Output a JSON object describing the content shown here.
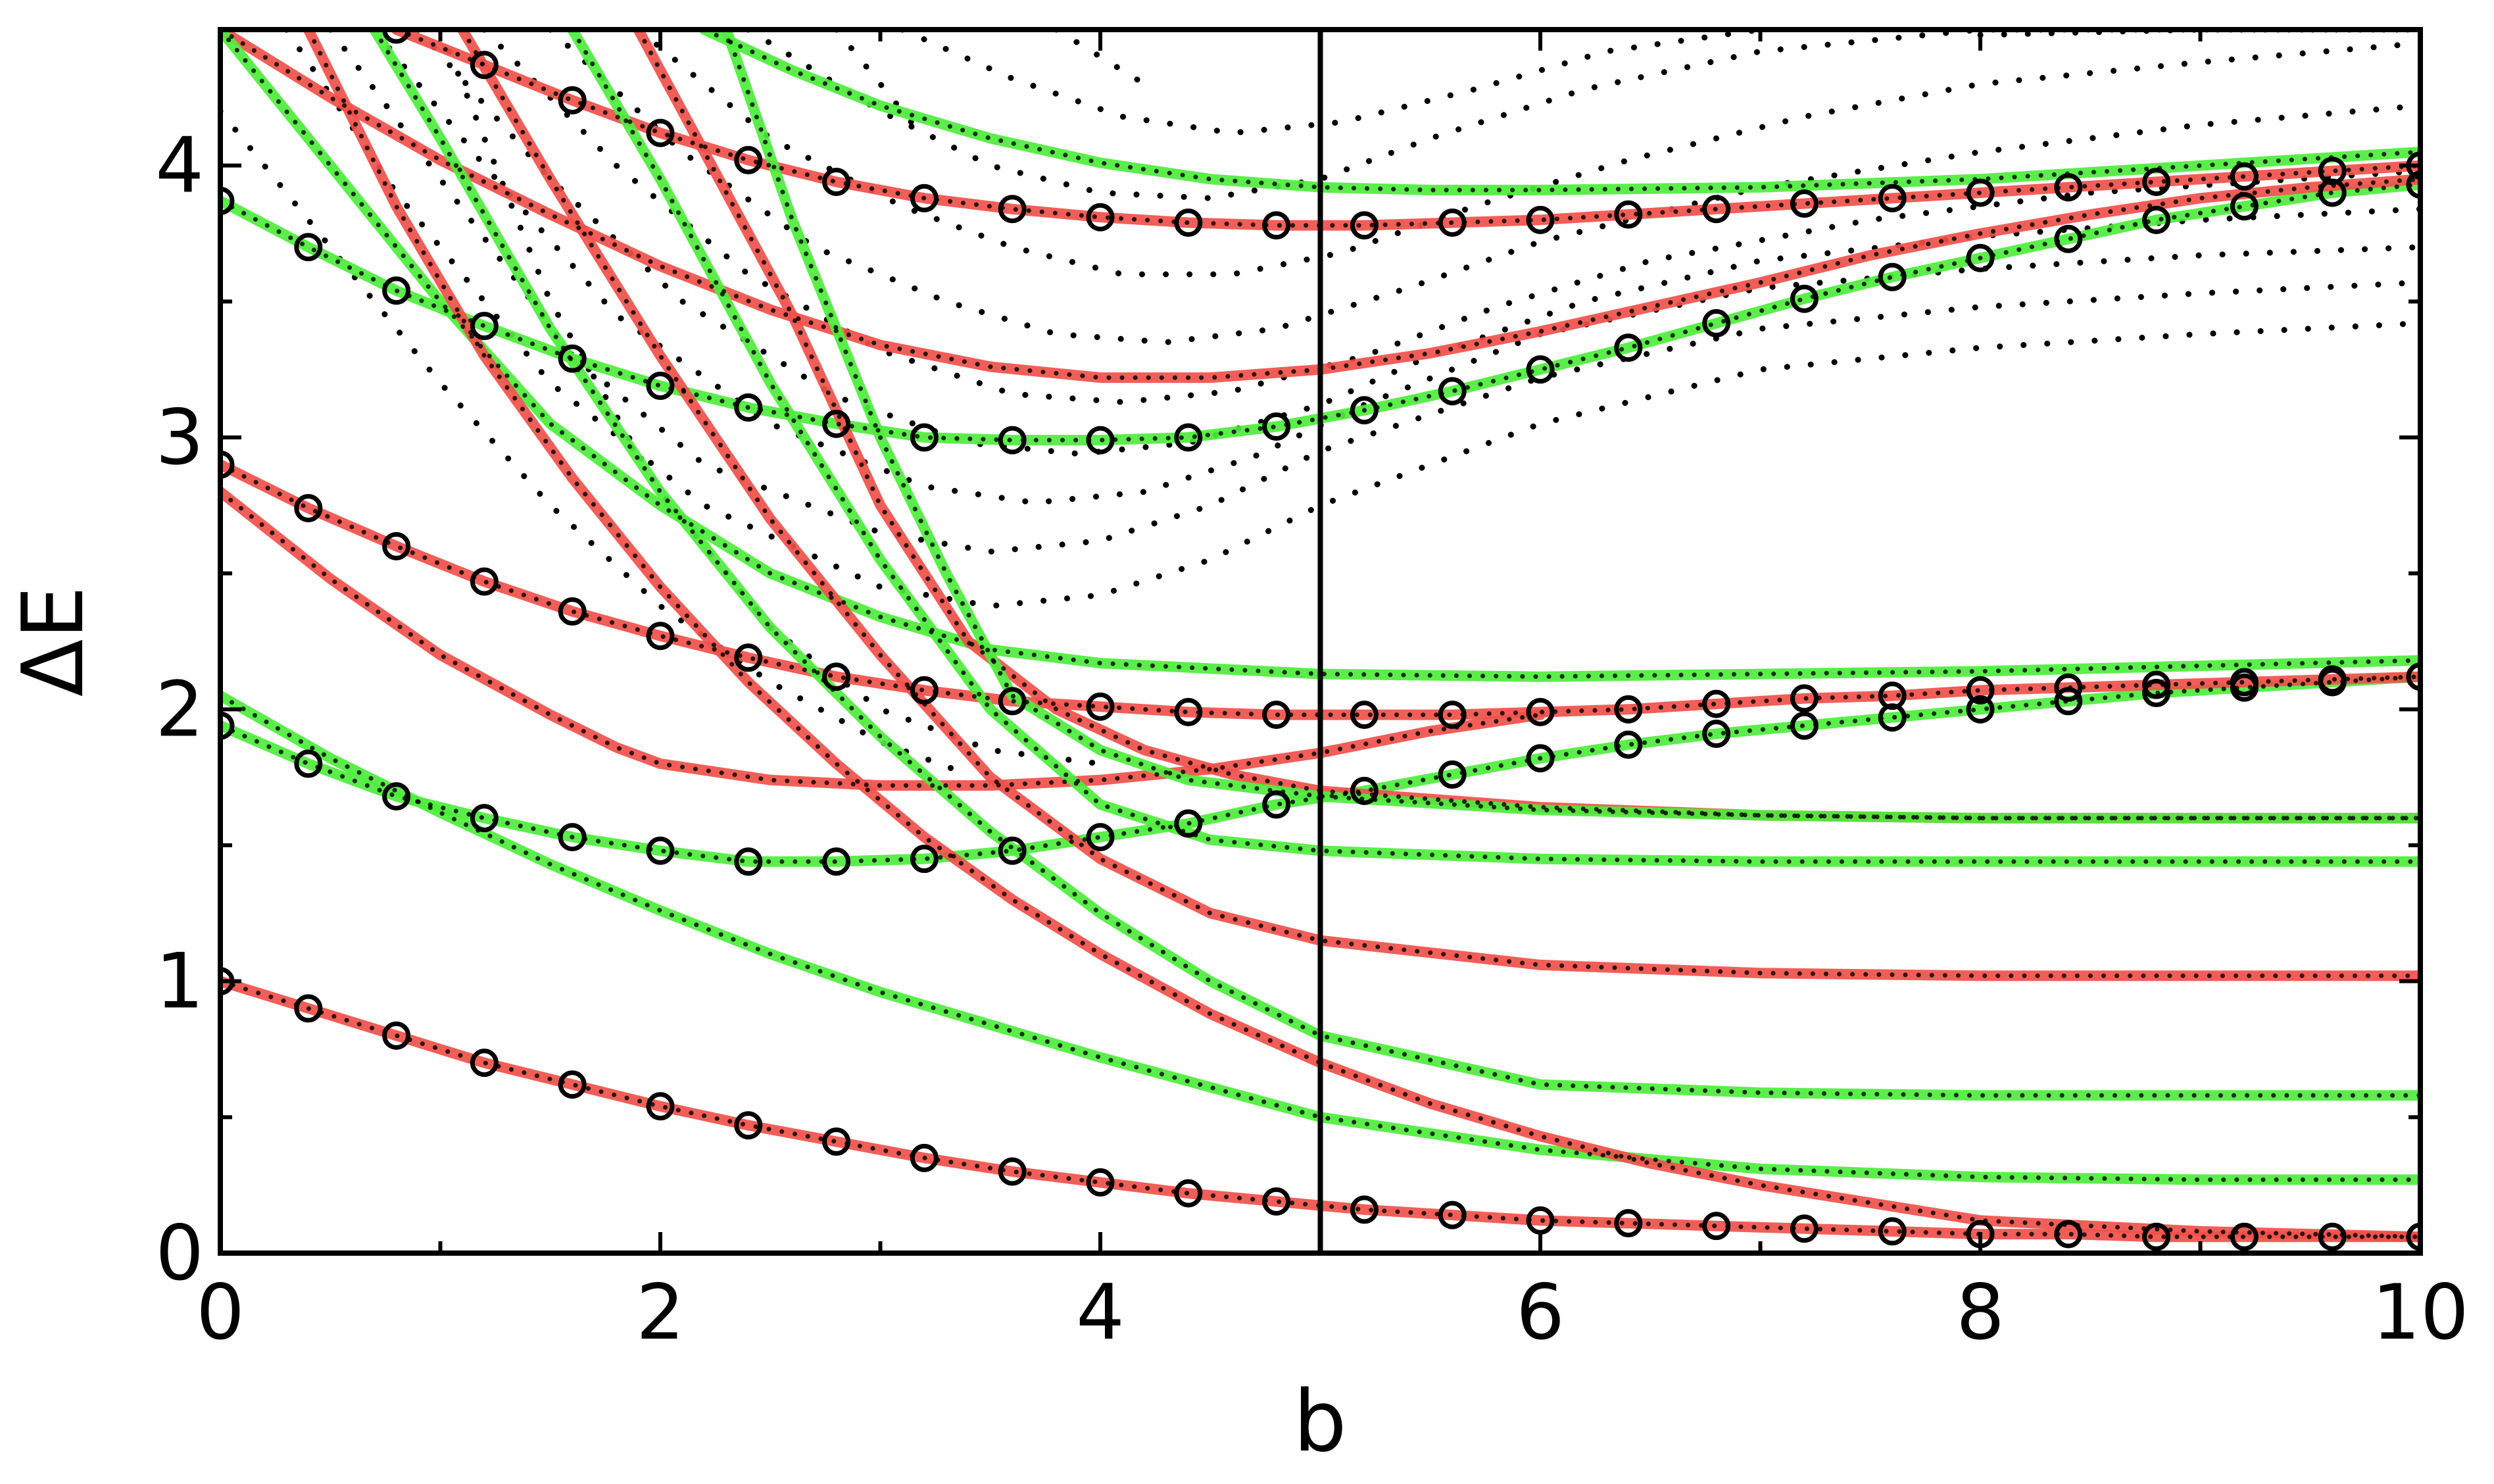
{
  "chart_data": {
    "type": "line",
    "title": "",
    "xlabel": "b",
    "ylabel": "ΔE",
    "xlim": [
      0,
      10
    ],
    "ylim": [
      0,
      4.5
    ],
    "xticks": [
      0,
      2,
      4,
      6,
      8,
      10
    ],
    "yticks": [
      0,
      1,
      2,
      3,
      4
    ],
    "xtick_labels": [
      "0",
      "2",
      "4",
      "6",
      "8",
      "10"
    ],
    "ytick_labels": [
      "0",
      "1",
      "2",
      "3",
      "4"
    ],
    "grid": false,
    "legend": "none",
    "vertical_line_x": 5,
    "colors": {
      "red": "#f0504a",
      "green": "#4ded3c",
      "dark_green": "#3aa82a",
      "brown": "#b4581c",
      "markers": "#000000",
      "dots": "#000000"
    },
    "series": [
      {
        "color": "red",
        "x": [
          0,
          0.4,
          0.8,
          1.2,
          1.6,
          2,
          2.4,
          2.8,
          3.2,
          3.6,
          4,
          4.4,
          4.8,
          5.2,
          5.6,
          6,
          6.4,
          6.8,
          7.2,
          7.6,
          8,
          8.4,
          8.8,
          9.2,
          9.6,
          10
        ],
        "y": [
          1.0,
          0.9,
          0.8,
          0.7,
          0.62,
          0.54,
          0.47,
          0.41,
          0.35,
          0.3,
          0.26,
          0.22,
          0.19,
          0.16,
          0.14,
          0.12,
          0.11,
          0.1,
          0.09,
          0.08,
          0.07,
          0.07,
          0.06,
          0.06,
          0.06,
          0.06
        ],
        "markers": true
      },
      {
        "color": "green",
        "x": [
          0,
          0.4,
          0.8,
          1.2,
          1.6,
          2,
          2.4,
          2.8,
          3.2,
          3.6,
          4,
          4.4,
          4.8,
          5.2,
          5.6,
          6,
          6.4,
          6.8,
          7.2,
          7.6,
          8,
          8.4,
          8.8,
          9.2,
          9.6,
          10
        ],
        "y": [
          1.94,
          1.8,
          1.68,
          1.6,
          1.53,
          1.48,
          1.44,
          1.44,
          1.45,
          1.48,
          1.53,
          1.58,
          1.65,
          1.7,
          1.76,
          1.82,
          1.87,
          1.91,
          1.94,
          1.97,
          2.0,
          2.03,
          2.06,
          2.08,
          2.1,
          2.12
        ],
        "markers": true
      },
      {
        "color": "red",
        "x": [
          0,
          0.4,
          0.8,
          1.2,
          1.6,
          2,
          2.4,
          2.8,
          3.2,
          3.6,
          4,
          4.4,
          4.8,
          5.2,
          5.6,
          6,
          6.4,
          6.8,
          7.2,
          7.6,
          8,
          8.4,
          8.8,
          9.2,
          9.6,
          10
        ],
        "y": [
          2.9,
          2.74,
          2.6,
          2.47,
          2.36,
          2.27,
          2.19,
          2.12,
          2.07,
          2.03,
          2.01,
          1.99,
          1.98,
          1.98,
          1.98,
          1.99,
          2.0,
          2.02,
          2.04,
          2.05,
          2.07,
          2.08,
          2.09,
          2.1,
          2.11,
          2.12
        ],
        "markers": true
      },
      {
        "color": "green",
        "x": [
          0,
          0.4,
          0.8,
          1.2,
          1.6,
          2,
          2.4,
          2.8,
          3.2,
          3.6,
          4,
          4.4,
          4.8,
          5.2,
          5.6,
          6,
          6.4,
          6.8,
          7.2,
          7.6,
          8,
          8.4,
          8.8,
          9.2,
          9.6,
          10
        ],
        "y": [
          3.87,
          3.7,
          3.54,
          3.41,
          3.29,
          3.19,
          3.11,
          3.05,
          3.0,
          2.99,
          2.99,
          3.0,
          3.04,
          3.1,
          3.17,
          3.25,
          3.33,
          3.42,
          3.51,
          3.59,
          3.66,
          3.73,
          3.8,
          3.85,
          3.9,
          3.93
        ],
        "markers": true
      },
      {
        "color": "red",
        "x": [
          0.8,
          1.2,
          1.6,
          2,
          2.4,
          2.8,
          3.2,
          3.6,
          4,
          4.4,
          4.8,
          5.2,
          5.6,
          6,
          6.4,
          6.8,
          7.2,
          7.6,
          8,
          8.4,
          8.8,
          9.2,
          9.6,
          10
        ],
        "y": [
          4.5,
          4.37,
          4.24,
          4.12,
          4.02,
          3.94,
          3.88,
          3.84,
          3.81,
          3.79,
          3.78,
          3.78,
          3.79,
          3.8,
          3.82,
          3.84,
          3.86,
          3.88,
          3.9,
          3.92,
          3.94,
          3.96,
          3.98,
          4.0
        ],
        "markers": true
      },
      {
        "color": "red",
        "x": [
          0,
          0.5,
          1,
          1.5,
          2,
          2.5,
          3,
          3.5,
          4,
          4.5,
          5,
          5.5,
          6,
          6.5,
          7,
          7.5,
          8,
          8.5,
          9,
          9.5,
          10
        ],
        "y": [
          4.5,
          4.25,
          4.02,
          3.82,
          3.63,
          3.47,
          3.34,
          3.26,
          3.22,
          3.22,
          3.25,
          3.31,
          3.39,
          3.48,
          3.57,
          3.67,
          3.75,
          3.82,
          3.88,
          3.92,
          3.95
        ],
        "markers": false
      },
      {
        "color": "green",
        "x": [
          2.2,
          2.6,
          3,
          3.5,
          4,
          4.5,
          5,
          5.5,
          6,
          7,
          8,
          9,
          10
        ],
        "y": [
          4.5,
          4.35,
          4.22,
          4.1,
          4.01,
          3.95,
          3.92,
          3.91,
          3.91,
          3.92,
          3.95,
          4.0,
          4.05
        ],
        "markers": false
      },
      {
        "color": "red",
        "x": [
          0,
          0.5,
          1,
          1.5,
          1.8,
          2,
          2.5,
          3,
          3.5,
          4,
          4.5,
          5,
          5.5,
          6
        ],
        "y": [
          2.8,
          2.48,
          2.2,
          1.98,
          1.86,
          1.8,
          1.74,
          1.72,
          1.72,
          1.74,
          1.78,
          1.84,
          1.92,
          1.98
        ],
        "markers": false
      },
      {
        "color": "green",
        "x": [
          0,
          0.5,
          1,
          1.5,
          2,
          2.5,
          3,
          3.5,
          4,
          5,
          6,
          7,
          8,
          9,
          10
        ],
        "y": [
          4.5,
          4.0,
          3.5,
          3.05,
          2.75,
          2.5,
          2.34,
          2.22,
          2.17,
          2.13,
          2.12,
          2.13,
          2.14,
          2.16,
          2.18
        ],
        "markers": false
      },
      {
        "color": "green",
        "x": [
          0,
          0.5,
          1,
          1.5,
          2,
          2.5,
          3,
          3.5,
          4,
          5,
          6,
          7,
          8,
          9,
          10
        ],
        "y": [
          2.05,
          1.82,
          1.62,
          1.43,
          1.26,
          1.1,
          0.96,
          0.84,
          0.72,
          0.5,
          0.38,
          0.31,
          0.28,
          0.27,
          0.27
        ],
        "markers": false
      },
      {
        "color": "red",
        "x": [
          0.4,
          0.8,
          1.2,
          1.6,
          2,
          2.4,
          2.8,
          3.2,
          3.6,
          4,
          4.5,
          5,
          5.5,
          6,
          6.5,
          7,
          8,
          9,
          10
        ],
        "y": [
          4.5,
          3.85,
          3.3,
          2.85,
          2.45,
          2.1,
          1.8,
          1.53,
          1.3,
          1.1,
          0.88,
          0.7,
          0.55,
          0.43,
          0.33,
          0.25,
          0.12,
          0.08,
          0.06
        ],
        "markers": false
      },
      {
        "color": "green",
        "x": [
          0.7,
          1,
          1.5,
          2,
          2.5,
          3,
          3.5,
          4,
          4.5,
          5,
          6,
          7,
          8,
          9,
          10
        ],
        "y": [
          4.5,
          4.1,
          3.4,
          2.8,
          2.3,
          1.9,
          1.55,
          1.25,
          1.0,
          0.8,
          0.62,
          0.59,
          0.58,
          0.58,
          0.58
        ],
        "markers": false
      },
      {
        "color": "red",
        "x": [
          1.1,
          1.5,
          2,
          2.5,
          3,
          3.5,
          4,
          4.5,
          5,
          6,
          7,
          8,
          9,
          10
        ],
        "y": [
          4.5,
          3.95,
          3.3,
          2.7,
          2.2,
          1.75,
          1.45,
          1.25,
          1.15,
          1.06,
          1.03,
          1.02,
          1.02,
          1.02
        ],
        "markers": false
      },
      {
        "color": "green",
        "x": [
          1.6,
          2,
          2.5,
          3,
          3.5,
          4,
          4.5,
          5,
          6,
          7,
          8,
          9,
          10
        ],
        "y": [
          4.5,
          3.95,
          3.2,
          2.55,
          2.0,
          1.65,
          1.52,
          1.48,
          1.45,
          1.44,
          1.44,
          1.44,
          1.44
        ],
        "markers": false
      },
      {
        "color": "red",
        "x": [
          1.9,
          2.2,
          2.6,
          3,
          3.4,
          3.8,
          4.2,
          4.6,
          5,
          6,
          7,
          8,
          9,
          10
        ],
        "y": [
          4.5,
          4.05,
          3.45,
          2.75,
          2.25,
          2.0,
          1.85,
          1.76,
          1.7,
          1.64,
          1.61,
          1.6,
          1.6,
          1.6
        ],
        "markers": false
      },
      {
        "color": "green",
        "x": [
          2.3,
          2.6,
          3,
          3.3,
          3.6,
          4,
          4.4,
          4.8,
          5,
          6,
          7,
          8,
          9,
          10
        ],
        "y": [
          4.5,
          3.8,
          3.0,
          2.5,
          2.05,
          1.85,
          1.74,
          1.7,
          1.68,
          1.63,
          1.61,
          1.6,
          1.6,
          1.6
        ],
        "markers": false
      }
    ],
    "gray_dotted_curves": [
      {
        "x": [
          0.3,
          0.8,
          1.5,
          2.2,
          3,
          3.5,
          4,
          4.5,
          5,
          6,
          7,
          8,
          9,
          10
        ],
        "y": [
          4.5,
          3.9,
          3.2,
          2.75,
          2.45,
          2.38,
          2.42,
          2.55,
          2.75,
          3.05,
          3.25,
          3.33,
          3.38,
          3.42
        ]
      },
      {
        "x": [
          0.5,
          1,
          1.6,
          2.2,
          3,
          3.5,
          4,
          4.5,
          5,
          6,
          7,
          8,
          9,
          10
        ],
        "y": [
          4.5,
          3.95,
          3.3,
          2.9,
          2.65,
          2.58,
          2.62,
          2.75,
          2.95,
          3.22,
          3.4,
          3.48,
          3.53,
          3.57
        ]
      },
      {
        "x": [
          0.7,
          1.2,
          1.8,
          2.5,
          3.2,
          3.7,
          4.2,
          4.7,
          5.2,
          6,
          7,
          8,
          9,
          10
        ],
        "y": [
          4.5,
          4.0,
          3.45,
          3.05,
          2.82,
          2.76,
          2.8,
          2.93,
          3.12,
          3.38,
          3.55,
          3.62,
          3.67,
          3.7
        ]
      },
      {
        "x": [
          0.9,
          1.5,
          2.1,
          2.8,
          3.4,
          3.9,
          4.4,
          5,
          5.5,
          6.2,
          7,
          8,
          9,
          10
        ],
        "y": [
          4.5,
          3.95,
          3.5,
          3.15,
          2.98,
          2.94,
          2.98,
          3.12,
          3.3,
          3.5,
          3.65,
          3.74,
          3.8,
          3.84
        ]
      },
      {
        "x": [
          1.2,
          1.8,
          2.4,
          3,
          3.6,
          4.1,
          4.6,
          5.2,
          5.8,
          6.5,
          7.5,
          8.5,
          10
        ],
        "y": [
          4.5,
          4.0,
          3.6,
          3.32,
          3.16,
          3.13,
          3.17,
          3.3,
          3.48,
          3.65,
          3.8,
          3.9,
          3.98
        ]
      },
      {
        "x": [
          1.5,
          2.1,
          2.7,
          3.3,
          3.8,
          4.3,
          4.8,
          5.4,
          6,
          7,
          8,
          9,
          10
        ],
        "y": [
          4.5,
          4.05,
          3.7,
          3.5,
          3.38,
          3.35,
          3.4,
          3.55,
          3.72,
          3.92,
          4.05,
          4.15,
          4.22
        ]
      },
      {
        "x": [
          1.9,
          2.5,
          3.1,
          3.6,
          4.1,
          4.6,
          5.1,
          5.7,
          6.4,
          7.2,
          8,
          9,
          10
        ],
        "y": [
          4.5,
          4.1,
          3.85,
          3.7,
          3.6,
          3.6,
          3.68,
          3.85,
          4.02,
          4.18,
          4.3,
          4.38,
          4.45
        ]
      },
      {
        "x": [
          2.4,
          3,
          3.5,
          4,
          4.5,
          5,
          5.5,
          6.2,
          7,
          8,
          9,
          10
        ],
        "y": [
          4.5,
          4.2,
          4.0,
          3.9,
          3.88,
          3.95,
          4.1,
          4.28,
          4.42,
          4.5,
          4.5,
          4.5
        ]
      },
      {
        "x": [
          3.1,
          3.6,
          4.1,
          4.6,
          5.1,
          5.7,
          6.3,
          7
        ],
        "y": [
          4.5,
          4.32,
          4.18,
          4.12,
          4.16,
          4.28,
          4.42,
          4.5
        ]
      },
      {
        "x": [
          0,
          0.5,
          1,
          1.5,
          2,
          2.5,
          3,
          3.4
        ],
        "y": [
          4.2,
          3.7,
          3.2,
          2.75,
          2.38,
          2.1,
          1.88,
          1.76
        ]
      },
      {
        "x": [
          1,
          1.5,
          2,
          2.5,
          3,
          3.5,
          4
        ],
        "y": [
          4.5,
          3.5,
          2.8,
          2.3,
          2.0,
          1.85,
          1.8
        ]
      },
      {
        "x": [
          2.8,
          3,
          3.2
        ],
        "y": [
          4.5,
          4.3,
          4.1
        ]
      },
      {
        "x": [
          3.8,
          4,
          4.2
        ],
        "y": [
          4.5,
          4.4,
          4.3
        ]
      },
      {
        "x": [
          8,
          8.5,
          9,
          9.5,
          10
        ],
        "y": [
          4.48,
          4.49,
          4.5,
          4.5,
          4.5
        ]
      }
    ]
  }
}
